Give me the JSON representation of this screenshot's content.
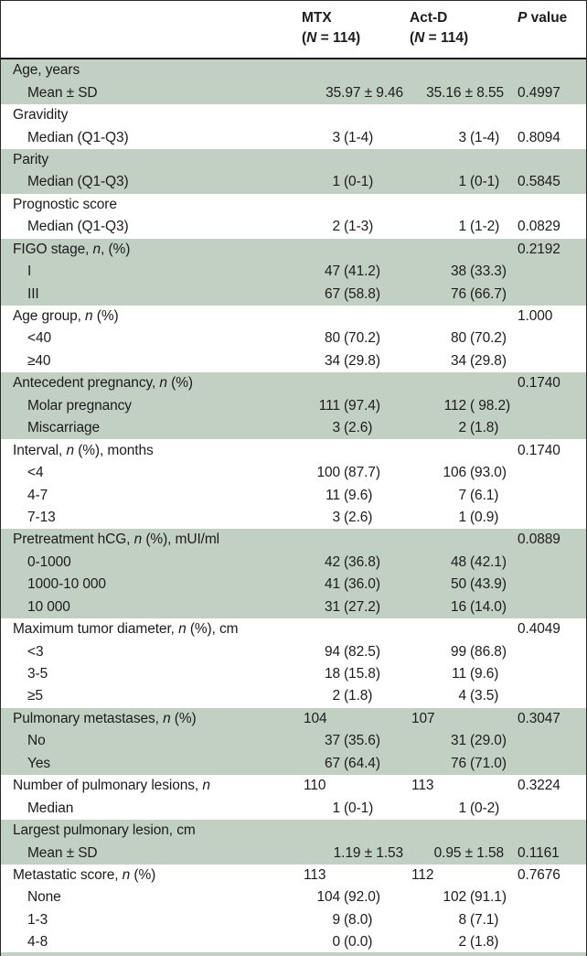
{
  "colors": {
    "group_shade_green": "#c1d0c3",
    "rule_black": "#101010",
    "text": "#1c1c1c"
  },
  "table": {
    "header": {
      "label_col": "",
      "mtx_line1": "MTX",
      "mtx_line2": "(N = 114)",
      "actd_line1": "Act-D",
      "actd_line2": "(N = 114)",
      "p_col": "P value"
    },
    "groups": [
      {
        "shade": "green",
        "rows": [
          {
            "label": "Age, years",
            "indent": false,
            "mtx": "",
            "actd": "",
            "p": ""
          },
          {
            "label": "Mean ± SD",
            "indent": true,
            "mtx": "35.97 ± 9.46",
            "actd": "35.16 ± 8.55",
            "p": "0.4997"
          }
        ]
      },
      {
        "shade": "white",
        "rows": [
          {
            "label": "Gravidity",
            "indent": false,
            "mtx": "",
            "actd": "",
            "p": ""
          },
          {
            "label": "Median (Q1-Q3)",
            "indent": true,
            "mtx": "3 (1-4)",
            "actd": "3 (1-4)",
            "p": "0.8094"
          }
        ]
      },
      {
        "shade": "green",
        "rows": [
          {
            "label": "Parity",
            "indent": false,
            "mtx": "",
            "actd": "",
            "p": ""
          },
          {
            "label": "Median (Q1-Q3)",
            "indent": true,
            "mtx": "1 (0-1)",
            "actd": "1 (0-1)",
            "p": "0.5845"
          }
        ]
      },
      {
        "shade": "white",
        "rows": [
          {
            "label": "Prognostic score",
            "indent": false,
            "mtx": "",
            "actd": "",
            "p": ""
          },
          {
            "label": "Median (Q1-Q3)",
            "indent": true,
            "mtx": "2 (1-3)",
            "actd": "1 (1-2)",
            "p": "0.0829"
          }
        ]
      },
      {
        "shade": "green",
        "rows": [
          {
            "label": "FIGO stage, n, (%)",
            "indent": false,
            "mtx": "",
            "actd": "",
            "p": "0.2192"
          },
          {
            "label": "I",
            "indent": true,
            "mtx": "47 (41.2)",
            "actd": "38 (33.3)",
            "p": ""
          },
          {
            "label": "III",
            "indent": true,
            "mtx": "67 (58.8)",
            "actd": "76 (66.7)",
            "p": ""
          }
        ]
      },
      {
        "shade": "white",
        "rows": [
          {
            "label": "Age group, n (%)",
            "indent": false,
            "mtx": "",
            "actd": "",
            "p": "1.000"
          },
          {
            "label": "<40",
            "indent": true,
            "mtx": "80 (70.2)",
            "actd": "80 (70.2)",
            "p": ""
          },
          {
            "label": "≥40",
            "indent": true,
            "mtx": "34 (29.8)",
            "actd": "34 (29.8)",
            "p": ""
          }
        ]
      },
      {
        "shade": "green",
        "rows": [
          {
            "label": "Antecedent pregnancy, n (%)",
            "indent": false,
            "mtx": "",
            "actd": "",
            "p": "0.1740"
          },
          {
            "label": "Molar pregnancy",
            "indent": true,
            "mtx": "111 (97.4)",
            "actd": "112 ( 98.2)",
            "p": ""
          },
          {
            "label": "Miscarriage",
            "indent": true,
            "mtx": "3 (2.6)",
            "actd": "2 (1.8)",
            "p": ""
          }
        ]
      },
      {
        "shade": "white",
        "rows": [
          {
            "label": "Interval, n (%), months",
            "indent": false,
            "mtx": "",
            "actd": "",
            "p": "0.1740"
          },
          {
            "label": "<4",
            "indent": true,
            "mtx": "100 (87.7)",
            "actd": "106 (93.0)",
            "p": ""
          },
          {
            "label": "4-7",
            "indent": true,
            "mtx": "11 (9.6)",
            "actd": "7 (6.1)",
            "p": ""
          },
          {
            "label": "7-13",
            "indent": true,
            "mtx": "3 (2.6)",
            "actd": "1 (0.9)",
            "p": ""
          }
        ]
      },
      {
        "shade": "green",
        "rows": [
          {
            "label": "Pretreatment hCG, n (%), mUI/ml",
            "indent": false,
            "mtx": "",
            "actd": "",
            "p": "0.0889"
          },
          {
            "label": "0-1000",
            "indent": true,
            "mtx": "42 (36.8)",
            "actd": "48 (42.1)",
            "p": ""
          },
          {
            "label": "1000-10 000",
            "indent": true,
            "mtx": "41 (36.0)",
            "actd": "50 (43.9)",
            "p": ""
          },
          {
            "label": "10 000",
            "indent": true,
            "mtx": "31 (27.2)",
            "actd": "16 (14.0)",
            "p": ""
          }
        ]
      },
      {
        "shade": "white",
        "rows": [
          {
            "label": "Maximum tumor diameter, n (%), cm",
            "indent": false,
            "mtx": "",
            "actd": "",
            "p": "0.4049"
          },
          {
            "label": "<3",
            "indent": true,
            "mtx": "94 (82.5)",
            "actd": "99 (86.8)",
            "p": ""
          },
          {
            "label": "3-5",
            "indent": true,
            "mtx": "18 (15.8)",
            "actd": "11 (9.6)",
            "p": ""
          },
          {
            "label": "≥5",
            "indent": true,
            "mtx": "2 (1.8)",
            "actd": "4 (3.5)",
            "p": ""
          }
        ]
      },
      {
        "shade": "green",
        "rows": [
          {
            "label": "Pulmonary metastases, n (%)",
            "indent": false,
            "mtx": "104",
            "actd": "107",
            "p": "0.3047"
          },
          {
            "label": "No",
            "indent": true,
            "mtx": "37 (35.6)",
            "actd": "31 (29.0)",
            "p": ""
          },
          {
            "label": "Yes",
            "indent": true,
            "mtx": "67 (64.4)",
            "actd": "76 (71.0)",
            "p": ""
          }
        ]
      },
      {
        "shade": "white",
        "rows": [
          {
            "label": "Number of pulmonary lesions, n",
            "indent": false,
            "mtx": "110",
            "actd": "113",
            "p": "0.3224"
          },
          {
            "label": "Median",
            "indent": true,
            "mtx": "1 (0-1)",
            "actd": "1 (0-2)",
            "p": ""
          }
        ]
      },
      {
        "shade": "green",
        "rows": [
          {
            "label": "Largest pulmonary lesion, cm",
            "indent": false,
            "mtx": "",
            "actd": "",
            "p": ""
          },
          {
            "label": "Mean ± SD",
            "indent": true,
            "mtx": "1.19 ± 1.53",
            "actd": "0.95 ± 1.58",
            "p": "0.1161"
          }
        ]
      },
      {
        "shade": "white",
        "rows": [
          {
            "label": "Metastatic score, n (%)",
            "indent": false,
            "mtx": "113",
            "actd": "112",
            "p": "0.7676"
          },
          {
            "label": "None",
            "indent": true,
            "mtx": "104 (92.0)",
            "actd": "102 (91.1)",
            "p": ""
          },
          {
            "label": "1-3",
            "indent": true,
            "mtx": "9 (8.0)",
            "actd": "8 (7.1)",
            "p": ""
          },
          {
            "label": "4-8",
            "indent": true,
            "mtx": "0 (0.0)",
            "actd": "2 (1.8)",
            "p": ""
          }
        ]
      }
    ]
  }
}
